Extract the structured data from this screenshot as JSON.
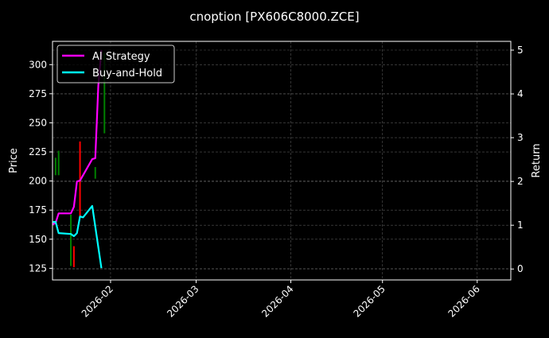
{
  "chart_data": {
    "type": "line",
    "title": "cnoption [PX606C8000.ZCE]",
    "xlabel": "",
    "ylabel_left": "Price",
    "ylabel_right": "Return",
    "xlim": [
      "2026-01-13",
      "2026-06-12"
    ],
    "ylim_left": [
      115,
      320
    ],
    "ylim_right": [
      -0.25,
      5.2
    ],
    "x_ticks": [
      "2026-02-01",
      "2026-03-01",
      "2026-04-01",
      "2026-05-01",
      "2026-06-01"
    ],
    "x_tick_labels": [
      "2026-02",
      "2026-03",
      "2026-04",
      "2026-05",
      "2026-06"
    ],
    "y_ticks_left": [
      125,
      150,
      175,
      200,
      225,
      250,
      275,
      300
    ],
    "y_ticks_right": [
      0,
      1,
      2,
      3,
      4,
      5
    ],
    "grid": true,
    "legend_placement": "upper-left",
    "colors": {
      "background": "#000000",
      "up": "#008000",
      "down": "#ff0000",
      "ai": "#ff00ff",
      "bh": "#00ffff"
    },
    "candles": [
      {
        "date": "2026-01-14",
        "open": 205,
        "high": 220,
        "low": 205,
        "close": 220
      },
      {
        "date": "2026-01-15",
        "open": 205,
        "high": 226,
        "low": 205,
        "close": 226
      },
      {
        "date": "2026-01-19",
        "open": 127,
        "high": 171,
        "low": 127,
        "close": 171
      },
      {
        "date": "2026-01-20",
        "open": 144,
        "high": 144,
        "low": 126,
        "close": 126
      },
      {
        "date": "2026-01-22",
        "open": 234,
        "high": 234,
        "low": 170,
        "close": 170
      },
      {
        "date": "2026-01-27",
        "open": 202,
        "high": 212,
        "low": 202,
        "close": 212
      },
      {
        "date": "2026-01-30",
        "open": 241,
        "high": 310,
        "low": 241,
        "close": 310
      }
    ],
    "series": [
      {
        "name": "AI Strategy",
        "axis": "right",
        "color": "#ff00ff",
        "x": [
          "2026-01-13",
          "2026-01-14",
          "2026-01-15",
          "2026-01-19",
          "2026-01-20",
          "2026-01-21",
          "2026-01-22",
          "2026-01-26",
          "2026-01-27",
          "2026-01-28",
          "2026-01-29"
        ],
        "values": [
          1.02,
          1.05,
          1.27,
          1.27,
          1.42,
          2.0,
          2.02,
          2.51,
          2.53,
          4.2,
          5.0
        ]
      },
      {
        "name": "Buy-and-Hold",
        "axis": "right",
        "color": "#00ffff",
        "x": [
          "2026-01-13",
          "2026-01-14",
          "2026-01-15",
          "2026-01-19",
          "2026-01-20",
          "2026-01-21",
          "2026-01-22",
          "2026-01-23",
          "2026-01-26",
          "2026-01-29"
        ],
        "values": [
          1.07,
          1.08,
          0.82,
          0.8,
          0.75,
          0.82,
          1.2,
          1.18,
          1.44,
          0.02
        ]
      }
    ]
  }
}
